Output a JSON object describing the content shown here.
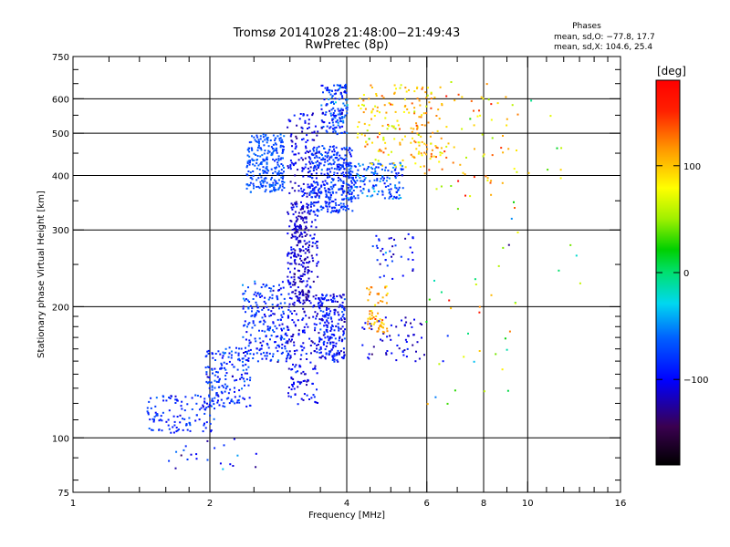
{
  "chart_data": {
    "type": "scatter",
    "title": "Tromsø 20141028 21:48:00−21:49:43",
    "subtitle": "RwPretec (8p)",
    "xlabel": "Frequency [MHz]",
    "ylabel": "Stationary phase Virtual Height [km]",
    "x_scale": "log",
    "y_scale": "log",
    "xlim": [
      1,
      16
    ],
    "ylim": [
      75,
      750
    ],
    "x_ticks": [
      1,
      2,
      4,
      6,
      8,
      10,
      16
    ],
    "y_ticks": [
      75,
      100,
      200,
      300,
      400,
      500,
      600,
      750
    ],
    "grid_x": [
      2,
      4,
      6,
      8,
      10
    ],
    "grid_y": [
      100,
      200,
      300,
      400,
      500,
      600
    ],
    "phase_stats": {
      "title": "Phases",
      "line1": "mean, sd,O: −77.8, 17.7",
      "line2": "mean, sd,X: 104.6, 25.4"
    },
    "colorbar": {
      "label": "[deg]",
      "ticks": [
        100,
        0,
        -100
      ],
      "tick_labels": [
        "100",
        "0",
        "−100"
      ],
      "range": [
        -180,
        180
      ]
    },
    "clusters": [
      {
        "x": [
          1.45,
          2.05
        ],
        "h": [
          103,
          126
        ],
        "n": 120,
        "phase": -85,
        "spread": 12
      },
      {
        "x": [
          1.95,
          2.45
        ],
        "h": [
          118,
          162
        ],
        "n": 170,
        "phase": -85,
        "spread": 14
      },
      {
        "x": [
          2.35,
          3.0
        ],
        "h": [
          150,
          230
        ],
        "n": 230,
        "phase": -85,
        "spread": 15
      },
      {
        "x": [
          2.4,
          2.9
        ],
        "h": [
          368,
          500
        ],
        "n": 260,
        "phase": -70,
        "spread": 8
      },
      {
        "x": [
          2.95,
          3.45
        ],
        "h": [
          120,
          560
        ],
        "n": 420,
        "phase": -105,
        "spread": 12
      },
      {
        "x": [
          3.05,
          3.3
        ],
        "h": [
          205,
          350
        ],
        "n": 150,
        "phase": -118,
        "spread": 8
      },
      {
        "x": [
          3.45,
          3.95
        ],
        "h": [
          150,
          215
        ],
        "n": 220,
        "phase": -95,
        "spread": 14
      },
      {
        "x": [
          3.3,
          4.1
        ],
        "h": [
          330,
          470
        ],
        "n": 340,
        "phase": -82,
        "spread": 12
      },
      {
        "x": [
          3.5,
          4.0
        ],
        "h": [
          500,
          650
        ],
        "n": 150,
        "phase": -75,
        "spread": 20
      },
      {
        "x": [
          4.0,
          5.3
        ],
        "h": [
          355,
          430
        ],
        "n": 170,
        "phase": -70,
        "spread": 18
      },
      {
        "x": [
          4.3,
          5.9
        ],
        "h": [
          150,
          190
        ],
        "n": 60,
        "phase": -108,
        "spread": 14
      },
      {
        "x": [
          4.2,
          5.8
        ],
        "h": [
          420,
          650
        ],
        "n": 120,
        "phase": 95,
        "spread": 22
      },
      {
        "x": [
          4.4,
          4.9
        ],
        "h": [
          175,
          225
        ],
        "n": 60,
        "phase": 110,
        "spread": 15
      },
      {
        "x": [
          4.5,
          5.6
        ],
        "h": [
          230,
          300
        ],
        "n": 40,
        "phase": -95,
        "spread": 20
      },
      {
        "x": [
          5.5,
          6.5
        ],
        "h": [
          440,
          650
        ],
        "n": 60,
        "phase": 110,
        "spread": 15
      },
      {
        "x": [
          5.8,
          9.5
        ],
        "h": [
          380,
          660
        ],
        "n": 80,
        "phase": 100,
        "spread": 30
      },
      {
        "x": [
          5.8,
          9.5
        ],
        "h": [
          120,
          380
        ],
        "n": 40,
        "phase": 30,
        "spread": 70
      },
      {
        "x": [
          9.2,
          13.0
        ],
        "h": [
          200,
          620
        ],
        "n": 16,
        "phase": 60,
        "spread": 60
      },
      {
        "x": [
          1.5,
          2.6
        ],
        "h": [
          85,
          100
        ],
        "n": 22,
        "phase": -100,
        "spread": 25
      }
    ]
  }
}
